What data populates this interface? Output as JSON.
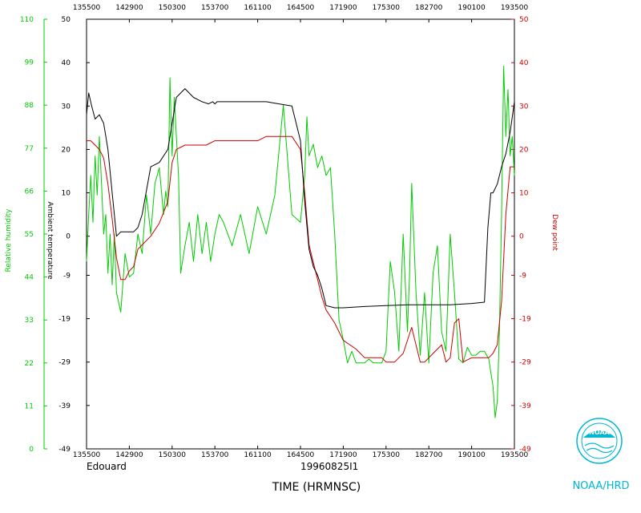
{
  "chart_data": {
    "type": "line",
    "xlabel": "TIME (HRMNSC)",
    "storm_name": "Edouard",
    "flight_id": "19960825I1",
    "org": "NOAA/HRD",
    "logo_text": "NOAA",
    "x_tick_labels": [
      "135500",
      "142900",
      "150300",
      "153700",
      "161100",
      "164500",
      "171900",
      "175300",
      "182700",
      "190100",
      "193500"
    ],
    "xlim": [
      0,
      10
    ],
    "axes": {
      "rh": {
        "label": "Relative humidity",
        "color": "#00cc00",
        "ylim": [
          0,
          110
        ],
        "ticks": [
          0,
          11,
          22,
          33,
          44,
          55,
          66,
          77,
          88,
          99,
          110
        ]
      },
      "temp": {
        "label": "Ambient temperature",
        "color": "#000000",
        "ylim": [
          -49,
          50
        ],
        "ticks": [
          -49,
          -39,
          -29,
          -19,
          -9,
          0,
          10,
          20,
          30,
          40,
          50
        ]
      },
      "dew": {
        "label": "Dew point",
        "color": "#cc0000",
        "ylim": [
          -49,
          50
        ],
        "ticks": [
          -49,
          -39,
          -29,
          -19,
          -9,
          0,
          10,
          20,
          30,
          40,
          50
        ]
      }
    },
    "series": [
      {
        "name": "Ambient temperature",
        "axis": "temp",
        "color": "#000000",
        "x": [
          0,
          0.05,
          0.12,
          0.2,
          0.3,
          0.4,
          0.5,
          0.6,
          0.7,
          0.8,
          0.9,
          1.0,
          1.1,
          1.2,
          1.3,
          1.5,
          1.7,
          1.9,
          2.0,
          2.1,
          2.3,
          2.5,
          2.7,
          2.85,
          2.95,
          3.0,
          3.05,
          3.2,
          3.5,
          3.8,
          4.0,
          4.2,
          4.5,
          4.8,
          5.0,
          5.1,
          5.2,
          5.3,
          5.4,
          5.5,
          5.6,
          5.8,
          6.0,
          6.5,
          7.0,
          7.5,
          8.0,
          8.5,
          9.0,
          9.3,
          9.38,
          9.45,
          9.5,
          9.6,
          9.7,
          9.8,
          9.9,
          10.0
        ],
        "values": [
          28,
          33,
          30,
          27,
          28,
          26,
          20,
          10,
          0,
          1,
          1,
          1,
          1,
          2,
          5,
          16,
          17,
          20,
          26,
          32,
          34,
          32,
          31,
          30.5,
          31,
          30.5,
          31,
          31,
          31,
          31,
          31,
          31,
          30.5,
          30,
          22,
          8,
          -3,
          -7,
          -9,
          -12,
          -16,
          -16.5,
          -16.5,
          -16.2,
          -16,
          -15.8,
          -15.8,
          -15.8,
          -15.5,
          -15.2,
          2,
          10,
          10,
          12,
          16,
          19,
          24,
          31
        ]
      },
      {
        "name": "Dew point",
        "axis": "dew",
        "color": "#cc0000",
        "x": [
          0,
          0.1,
          0.2,
          0.3,
          0.4,
          0.5,
          0.6,
          0.7,
          0.8,
          0.9,
          1.0,
          1.1,
          1.2,
          1.3,
          1.5,
          1.7,
          1.9,
          2.0,
          2.1,
          2.3,
          2.5,
          2.8,
          3.0,
          3.2,
          3.5,
          3.8,
          4.0,
          4.2,
          4.5,
          4.8,
          5.0,
          5.1,
          5.2,
          5.3,
          5.4,
          5.5,
          5.6,
          5.8,
          6.0,
          6.3,
          6.5,
          6.7,
          6.9,
          7.0,
          7.2,
          7.3,
          7.4,
          7.5,
          7.6,
          7.8,
          7.9,
          8.0,
          8.1,
          8.2,
          8.3,
          8.4,
          8.5,
          8.6,
          8.7,
          8.8,
          9.0,
          9.2,
          9.4,
          9.5,
          9.6,
          9.7,
          9.8,
          9.9,
          10.0
        ],
        "values": [
          22,
          22,
          21,
          20,
          18,
          12,
          4,
          -5,
          -10,
          -10,
          -8,
          -7,
          -3,
          -2,
          0,
          3,
          8,
          17,
          20,
          21,
          21,
          21,
          22,
          22,
          22,
          22,
          22,
          23,
          23,
          23,
          20,
          10,
          -2,
          -6,
          -10,
          -14,
          -17,
          -20,
          -24,
          -26,
          -28,
          -28,
          -28,
          -29,
          -29,
          -28,
          -27,
          -24,
          -21,
          -29,
          -29,
          -28,
          -27,
          -26,
          -25,
          -29,
          -28,
          -20,
          -19,
          -29,
          -28,
          -28,
          -28,
          -27,
          -25,
          -15,
          5,
          16,
          16
        ]
      },
      {
        "name": "Relative humidity",
        "axis": "rh",
        "color": "#00cc00",
        "x": [
          0,
          0.05,
          0.1,
          0.15,
          0.2,
          0.25,
          0.3,
          0.35,
          0.4,
          0.45,
          0.5,
          0.55,
          0.6,
          0.65,
          0.7,
          0.8,
          0.9,
          1.0,
          1.1,
          1.2,
          1.3,
          1.4,
          1.5,
          1.6,
          1.7,
          1.8,
          1.85,
          1.9,
          1.95,
          2.0,
          2.05,
          2.1,
          2.15,
          2.2,
          2.3,
          2.4,
          2.5,
          2.6,
          2.7,
          2.8,
          2.9,
          3.0,
          3.1,
          3.2,
          3.4,
          3.6,
          3.8,
          4.0,
          4.2,
          4.4,
          4.6,
          4.8,
          5.0,
          5.1,
          5.15,
          5.2,
          5.3,
          5.4,
          5.5,
          5.6,
          5.7,
          5.8,
          5.9,
          6.0,
          6.1,
          6.2,
          6.3,
          6.4,
          6.5,
          6.6,
          6.7,
          6.8,
          6.9,
          7.0,
          7.1,
          7.2,
          7.3,
          7.4,
          7.5,
          7.55,
          7.6,
          7.7,
          7.8,
          7.9,
          8.0,
          8.1,
          8.2,
          8.3,
          8.4,
          8.5,
          8.6,
          8.7,
          8.8,
          8.9,
          9.0,
          9.1,
          9.2,
          9.3,
          9.4,
          9.5,
          9.55,
          9.6,
          9.65,
          9.7,
          9.75,
          9.8,
          9.85,
          9.9,
          9.95,
          10.0
        ],
        "values": [
          48,
          60,
          70,
          58,
          75,
          65,
          80,
          68,
          55,
          60,
          45,
          55,
          42,
          55,
          40,
          35,
          50,
          44,
          45,
          55,
          50,
          65,
          55,
          68,
          72,
          60,
          66,
          62,
          95,
          75,
          90,
          80,
          70,
          45,
          52,
          58,
          48,
          60,
          50,
          58,
          48,
          55,
          60,
          58,
          52,
          60,
          50,
          62,
          55,
          65,
          88,
          60,
          58,
          70,
          85,
          75,
          78,
          72,
          75,
          70,
          72,
          55,
          33,
          28,
          22,
          25,
          22,
          22,
          22,
          23,
          22,
          22,
          22,
          25,
          48,
          40,
          25,
          55,
          30,
          45,
          68,
          40,
          24,
          40,
          22,
          45,
          52,
          30,
          25,
          55,
          40,
          23,
          22,
          26,
          24,
          24,
          25,
          25,
          23,
          16,
          8,
          12,
          30,
          60,
          98,
          80,
          92,
          75,
          80,
          70
        ]
      }
    ]
  }
}
